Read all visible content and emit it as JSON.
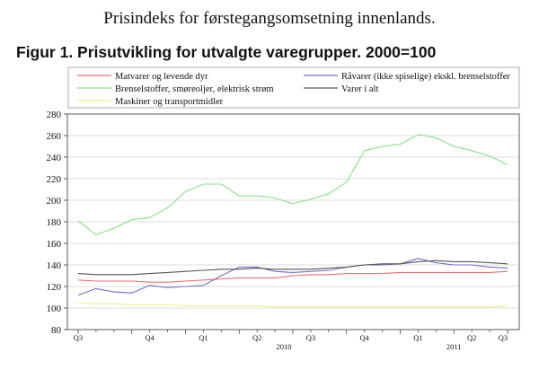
{
  "page": {
    "heading": "Prisindeks for førstegangsomsetning innenlands."
  },
  "chart_data": {
    "type": "line",
    "title": "Figur 1. Prisutvikling for utvalgte varegrupper. 2000=100",
    "ylim": [
      80,
      280
    ],
    "y_ticks": [
      80,
      100,
      120,
      140,
      160,
      180,
      200,
      220,
      240,
      260,
      280
    ],
    "x": [
      "2009-07",
      "2009-08",
      "2009-09",
      "2009-10",
      "2009-11",
      "2009-12",
      "2010-01",
      "2010-02",
      "2010-03",
      "2010-04",
      "2010-05",
      "2010-06",
      "2010-07",
      "2010-08",
      "2010-09",
      "2010-10",
      "2010-11",
      "2010-12",
      "2011-01",
      "2011-02",
      "2011-03",
      "2011-04",
      "2011-05",
      "2011-06",
      "2011-07"
    ],
    "quarter_labels": [
      "Q3",
      "Q4",
      "Q1",
      "Q2",
      "Q3",
      "Q4",
      "Q1",
      "Q2",
      "Q3"
    ],
    "year_labels": [
      "2010",
      "2011"
    ],
    "grid": true,
    "legend_position": "top",
    "series": [
      {
        "name": "Matvarer og levende dyr",
        "color": "#ee6e6e",
        "values": [
          126,
          125,
          125,
          125,
          124,
          124,
          125,
          126,
          127,
          128,
          128,
          128,
          130,
          131,
          131,
          132,
          132,
          132,
          133,
          133,
          133,
          133,
          133,
          133,
          134
        ]
      },
      {
        "name": "Brenselstoffer, smøreoljer, elektrisk strøm",
        "color": "#86e086",
        "values": [
          181,
          168,
          174,
          182,
          184,
          193,
          208,
          215,
          215,
          204,
          204,
          202,
          197,
          201,
          206,
          217,
          246,
          250,
          252,
          261,
          258,
          250,
          246,
          241,
          233
        ]
      },
      {
        "name": "Maskiner og transportmidler",
        "color": "#f2ee8a",
        "values": [
          105,
          104,
          104,
          103,
          103,
          103,
          102,
          102,
          102,
          102,
          102,
          101,
          101,
          101,
          101,
          101,
          101,
          101,
          101,
          101,
          101,
          101,
          101,
          101,
          102
        ]
      },
      {
        "name": "Råvarer (ikke spiselige) ekskl. brenselstoffer",
        "color": "#6f6fc6",
        "values": [
          112,
          118,
          115,
          114,
          121,
          119,
          120,
          121,
          130,
          138,
          138,
          134,
          133,
          134,
          135,
          138,
          140,
          140,
          141,
          146,
          142,
          140,
          140,
          138,
          137
        ]
      },
      {
        "name": "Varer i alt",
        "color": "#555555",
        "values": [
          132,
          131,
          131,
          131,
          132,
          133,
          134,
          135,
          136,
          136,
          137,
          136,
          136,
          136,
          137,
          138,
          140,
          141,
          141,
          143,
          144,
          143,
          143,
          142,
          141
        ]
      }
    ]
  }
}
